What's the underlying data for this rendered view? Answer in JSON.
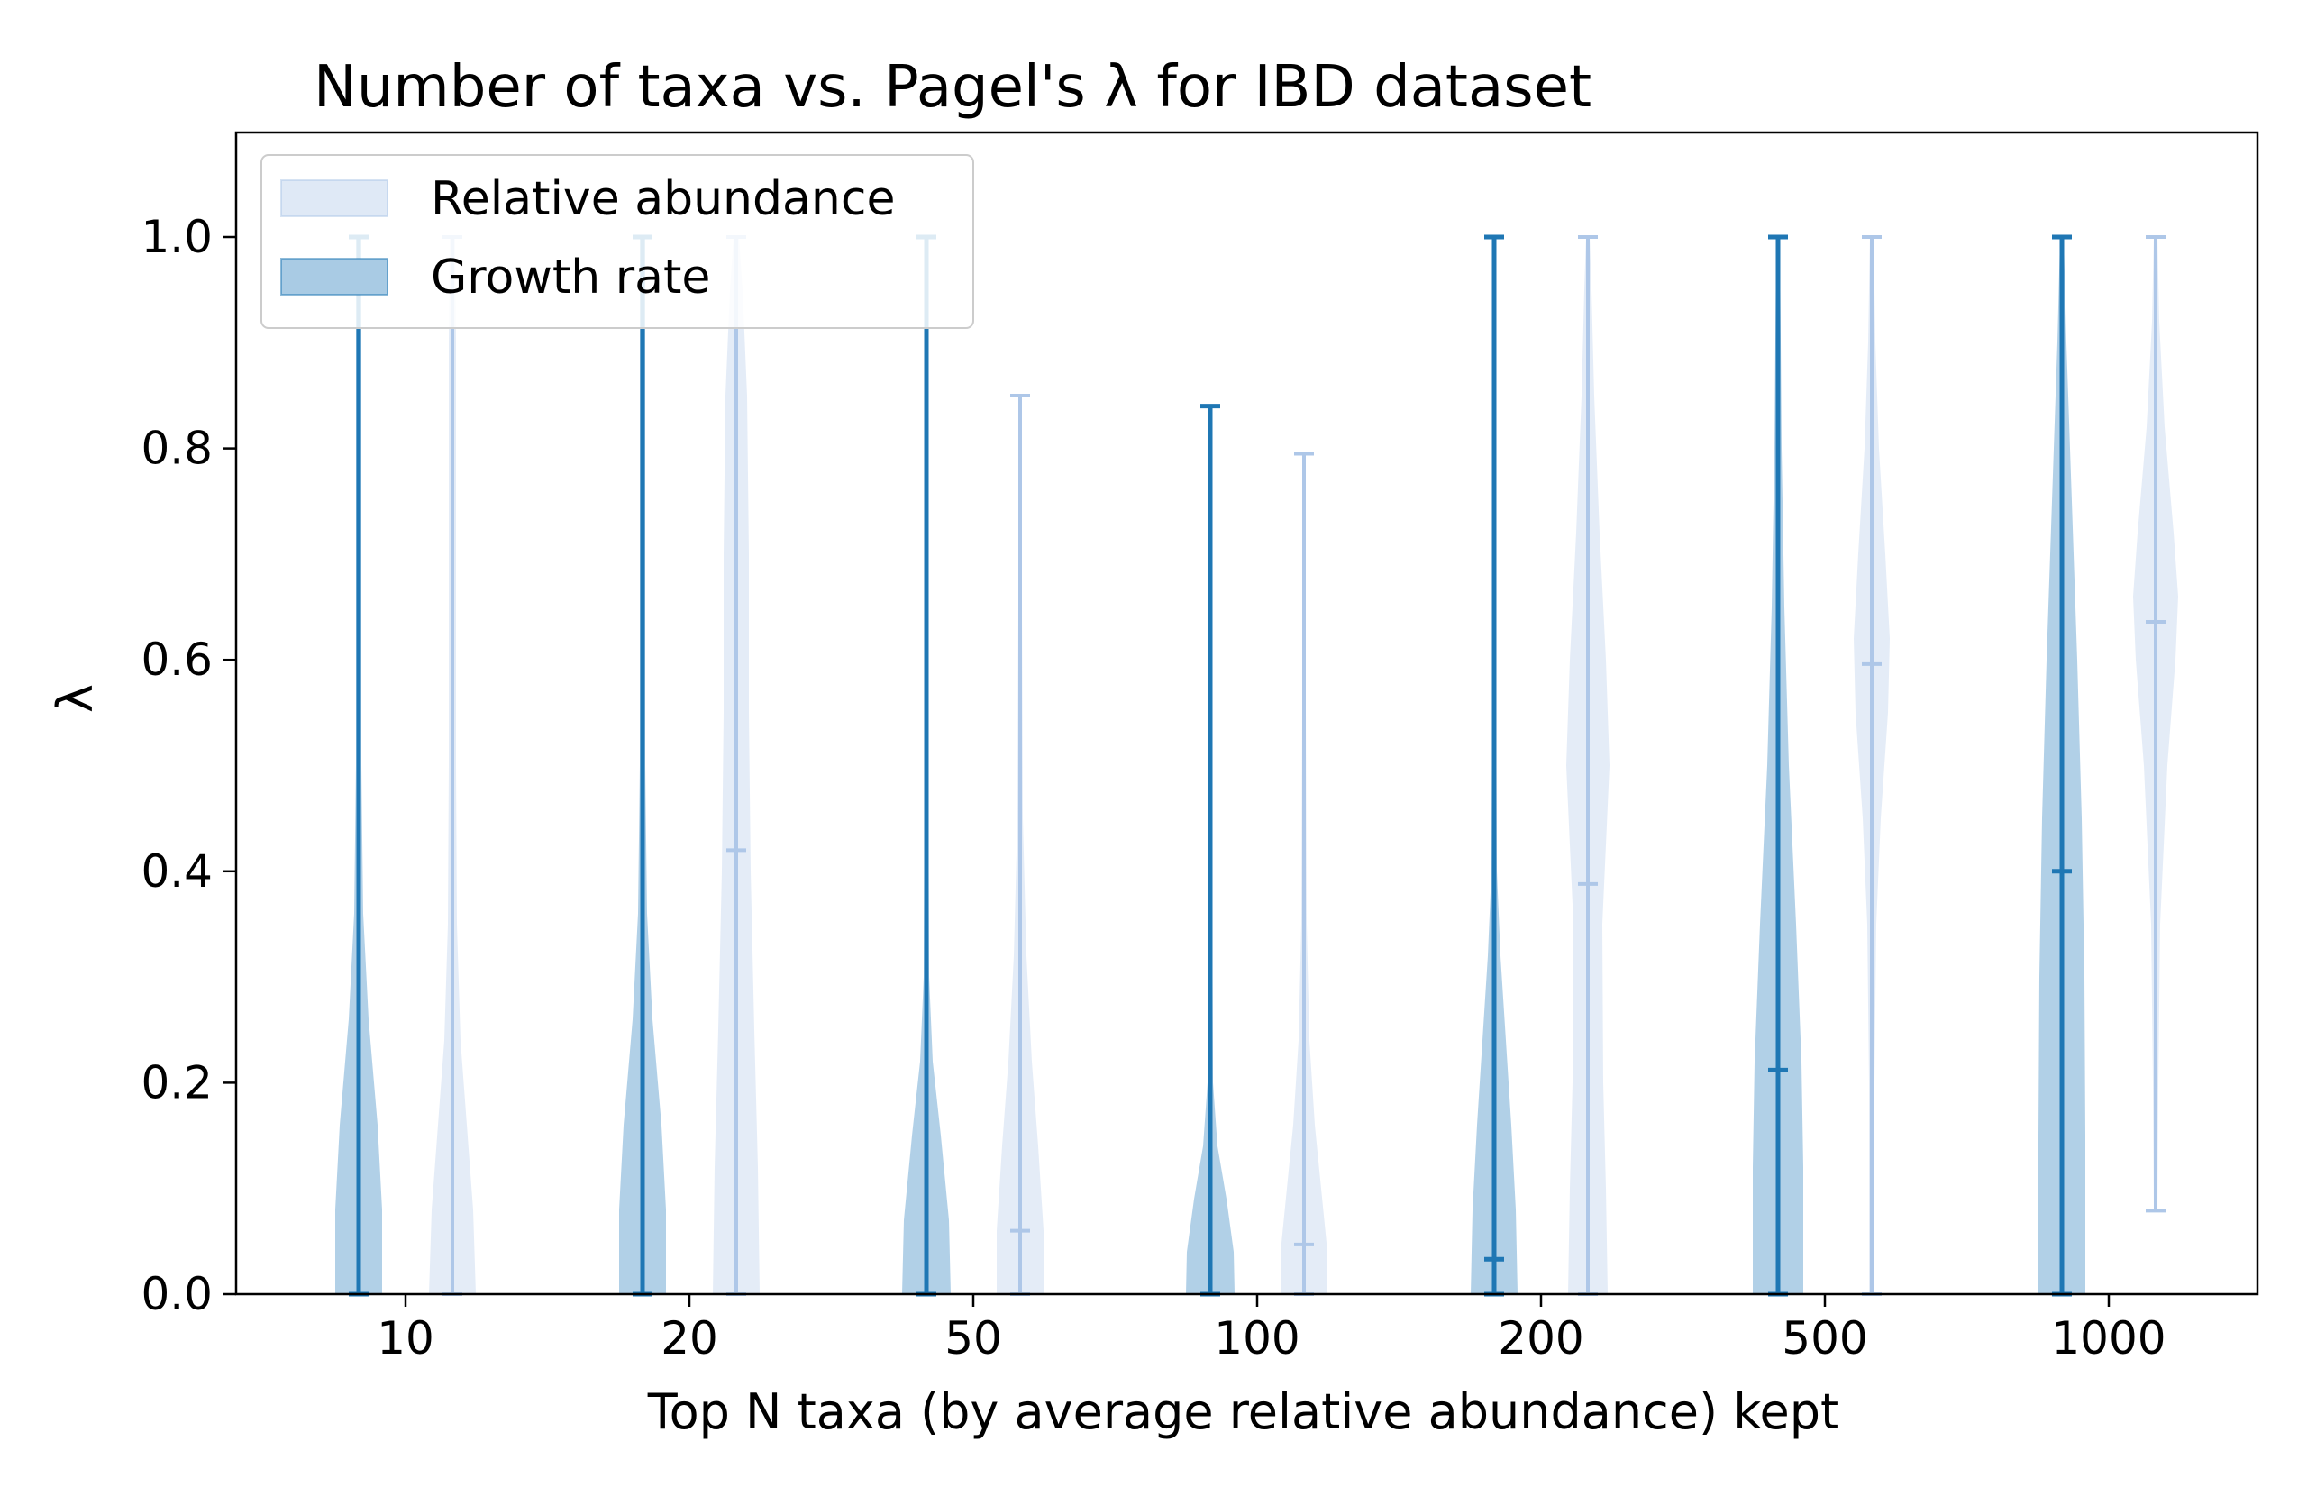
{
  "chart_data": {
    "type": "violin",
    "title": "Number of taxa vs. Pagel's λ for IBD dataset",
    "xlabel": "Top N taxa (by average relative abundance) kept",
    "ylabel": "λ",
    "ylim": [
      0.0,
      1.1
    ],
    "yticks": [
      "0.0",
      "0.2",
      "0.4",
      "0.6",
      "0.8",
      "1.0"
    ],
    "categories": [
      "10",
      "20",
      "50",
      "100",
      "200",
      "500",
      "1000"
    ],
    "legend_position": "top-left",
    "colors": {
      "growth_fill": "#a9cbe4",
      "growth_line": "#1f77b4",
      "rel_fill": "#dfe9f6",
      "rel_line": "#aec7e8"
    },
    "series": [
      {
        "name": "Growth rate",
        "min": [
          0.0,
          0.0,
          0.0,
          0.0,
          0.0,
          0.0,
          0.0
        ],
        "max": [
          1.0,
          1.0,
          1.0,
          0.84,
          1.0,
          1.0,
          1.0
        ],
        "median": [
          0.0,
          0.0,
          0.0,
          0.0,
          0.033,
          0.212,
          0.4
        ]
      },
      {
        "name": "Relative abundance",
        "min": [
          0.0,
          0.0,
          0.0,
          0.0,
          0.0,
          0.0,
          0.079
        ],
        "max": [
          1.0,
          1.0,
          0.85,
          0.795,
          1.0,
          1.0,
          1.0
        ],
        "median": [
          0.0,
          0.42,
          0.06,
          0.047,
          0.388,
          0.596,
          0.636
        ]
      }
    ]
  }
}
